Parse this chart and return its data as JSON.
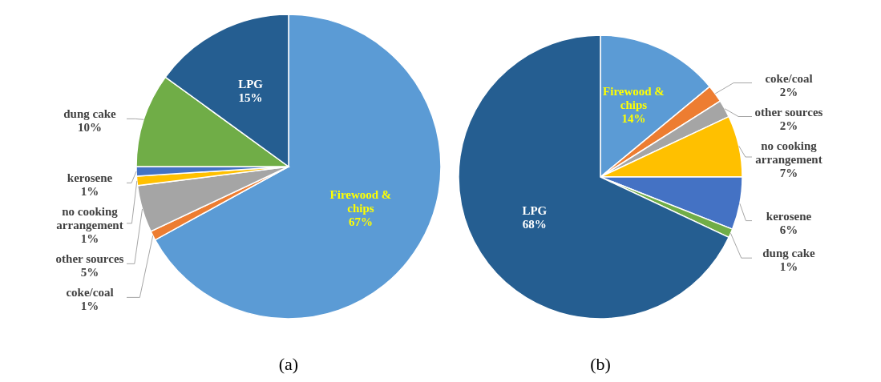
{
  "chart_data": [
    {
      "type": "pie",
      "categories": [
        "Firewood & chips",
        "coke/coal",
        "other sources",
        "no cooking arrangement",
        "kerosene",
        "dung cake",
        "LPG"
      ],
      "values": [
        67,
        1,
        5,
        1,
        1,
        10,
        15
      ],
      "value_labels": [
        "67%",
        "1%",
        "5%",
        "1%",
        "1%",
        "10%",
        "15%"
      ],
      "colors": [
        "#5b9bd5",
        "#ed7d31",
        "#a5a5a5",
        "#ffc000",
        "#4472c4",
        "#70ad47",
        "#255e91"
      ],
      "annotations": [
        "(a)"
      ]
    },
    {
      "type": "pie",
      "categories": [
        "Firewood & chips",
        "coke/coal",
        "other sources",
        "no cooking arrangement",
        "kerosene",
        "dung cake",
        "LPG"
      ],
      "values": [
        14,
        2,
        2,
        7,
        6,
        1,
        68
      ],
      "value_labels": [
        "14%",
        "2%",
        "2%",
        "7%",
        "6%",
        "1%",
        "68%"
      ],
      "colors": [
        "#5b9bd5",
        "#ed7d31",
        "#a5a5a5",
        "#ffc000",
        "#4472c4",
        "#70ad47",
        "#255e91"
      ],
      "annotations": [
        "(b)"
      ]
    }
  ]
}
